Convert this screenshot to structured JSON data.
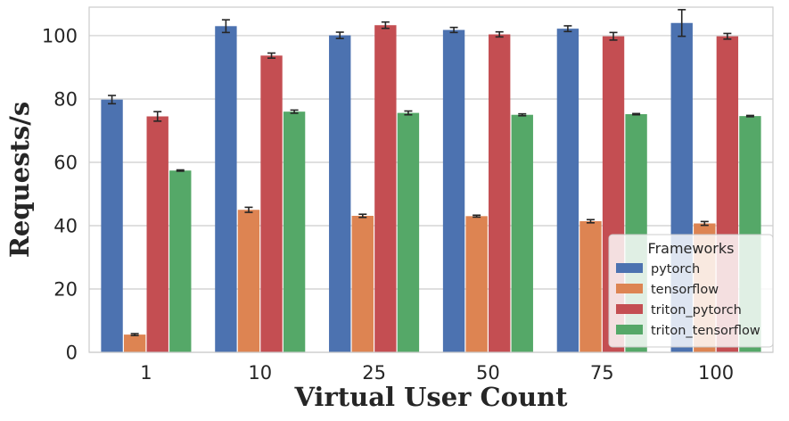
{
  "chart_data": {
    "type": "bar",
    "xlabel": "Virtual User Count",
    "ylabel": "Requests/s",
    "categories": [
      "1",
      "10",
      "25",
      "50",
      "75",
      "100"
    ],
    "ylim": [
      0,
      109
    ],
    "yticks": [
      "0",
      "20",
      "40",
      "60",
      "80",
      "100"
    ],
    "grid": true,
    "legend": {
      "title": "Frameworks",
      "placement": "lower-right"
    },
    "series": [
      {
        "name": "pytorch",
        "color": "#4c72b0",
        "values": [
          79.8,
          103.0,
          100.1,
          101.8,
          102.2,
          104.0
        ],
        "errors": [
          1.3,
          2.0,
          1.0,
          0.8,
          0.9,
          4.2
        ]
      },
      {
        "name": "tensorflow",
        "color": "#dd8452",
        "values": [
          5.6,
          45.0,
          43.1,
          43.0,
          41.4,
          40.7
        ],
        "errors": [
          0.3,
          0.8,
          0.5,
          0.3,
          0.5,
          0.6
        ]
      },
      {
        "name": "triton_pytorch",
        "color": "#c44e52",
        "values": [
          74.5,
          93.7,
          103.3,
          100.4,
          99.8,
          99.8
        ],
        "errors": [
          1.5,
          0.8,
          1.0,
          0.8,
          1.2,
          0.9
        ]
      },
      {
        "name": "triton_tensorflow",
        "color": "#55a868",
        "values": [
          57.4,
          76.0,
          75.6,
          75.0,
          75.2,
          74.6
        ],
        "errors": [
          0.2,
          0.5,
          0.6,
          0.3,
          0.2,
          0.2
        ]
      }
    ]
  }
}
